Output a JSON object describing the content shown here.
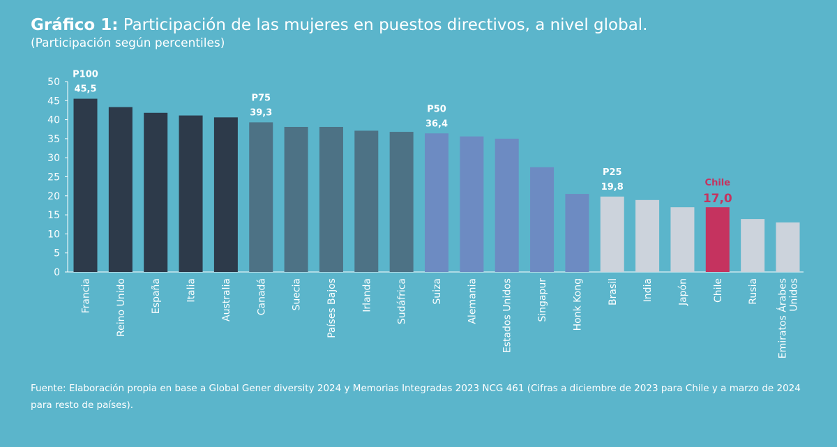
{
  "title": {
    "label": "Gráfico 1:",
    "text": "Participación de las mujeres en puestos directivos, a nivel global.",
    "subtitle": "(Participación según percentiles)"
  },
  "chart_data": {
    "type": "bar",
    "title": "Gráfico 1: Participación de las mujeres en puestos directivos, a nivel global.",
    "subtitle": "(Participación según percentiles)",
    "xlabel": "",
    "ylabel": "",
    "ylim": [
      0,
      50
    ],
    "yticks": [
      0,
      5,
      10,
      15,
      20,
      25,
      30,
      35,
      40,
      45,
      50
    ],
    "grid": false,
    "categories": [
      [
        "Francia"
      ],
      [
        "Reino Unido"
      ],
      [
        "España"
      ],
      [
        "Italia"
      ],
      [
        "Australia"
      ],
      [
        "Canadá"
      ],
      [
        "Suecia"
      ],
      [
        "Países Bajos"
      ],
      [
        "Irlanda"
      ],
      [
        "Sudáfrica"
      ],
      [
        "Suiza"
      ],
      [
        "Alemania"
      ],
      [
        "Estados Unidos"
      ],
      [
        "Singapur"
      ],
      [
        "Honk Kong"
      ],
      [
        "Brasil"
      ],
      [
        "India"
      ],
      [
        "Japón"
      ],
      [
        "Chile"
      ],
      [
        "Rusia"
      ],
      [
        "Emiratos Árabes",
        "Unidos"
      ]
    ],
    "values": [
      45.5,
      43.3,
      41.8,
      41.1,
      40.6,
      39.3,
      38.1,
      38.1,
      37.1,
      36.8,
      36.4,
      35.6,
      35.0,
      27.5,
      20.5,
      19.8,
      18.9,
      17.0,
      17.0,
      13.9,
      13.0
    ],
    "groups": [
      0,
      0,
      0,
      0,
      0,
      1,
      1,
      1,
      1,
      1,
      2,
      2,
      2,
      2,
      2,
      3,
      3,
      3,
      4,
      3,
      3
    ],
    "group_colors": [
      "#2d3a4a",
      "#4d7285",
      "#6d8bc2",
      "#ccd3dc",
      "#c5335f"
    ],
    "annotations": [
      {
        "index": 0,
        "lines": [
          "P100",
          "45,5"
        ],
        "color": "#ffffff",
        "highlight": false
      },
      {
        "index": 5,
        "lines": [
          "P75",
          "39,3"
        ],
        "color": "#ffffff",
        "highlight": false
      },
      {
        "index": 10,
        "lines": [
          "P50",
          "36,4"
        ],
        "color": "#ffffff",
        "highlight": false
      },
      {
        "index": 15,
        "lines": [
          "P25",
          "19,8"
        ],
        "color": "#ffffff",
        "highlight": false
      },
      {
        "index": 18,
        "lines": [
          "Chile",
          "17,0"
        ],
        "color": "#c5335f",
        "highlight": true
      }
    ],
    "axis_color": "#ffffff"
  },
  "footnote": "Fuente: Elaboración propia en base a Global Gener diversity 2024 y Memorias Integradas 2023 NCG 461 (Cifras a diciembre de 2023 para Chile y a marzo de 2024 para resto de países)."
}
